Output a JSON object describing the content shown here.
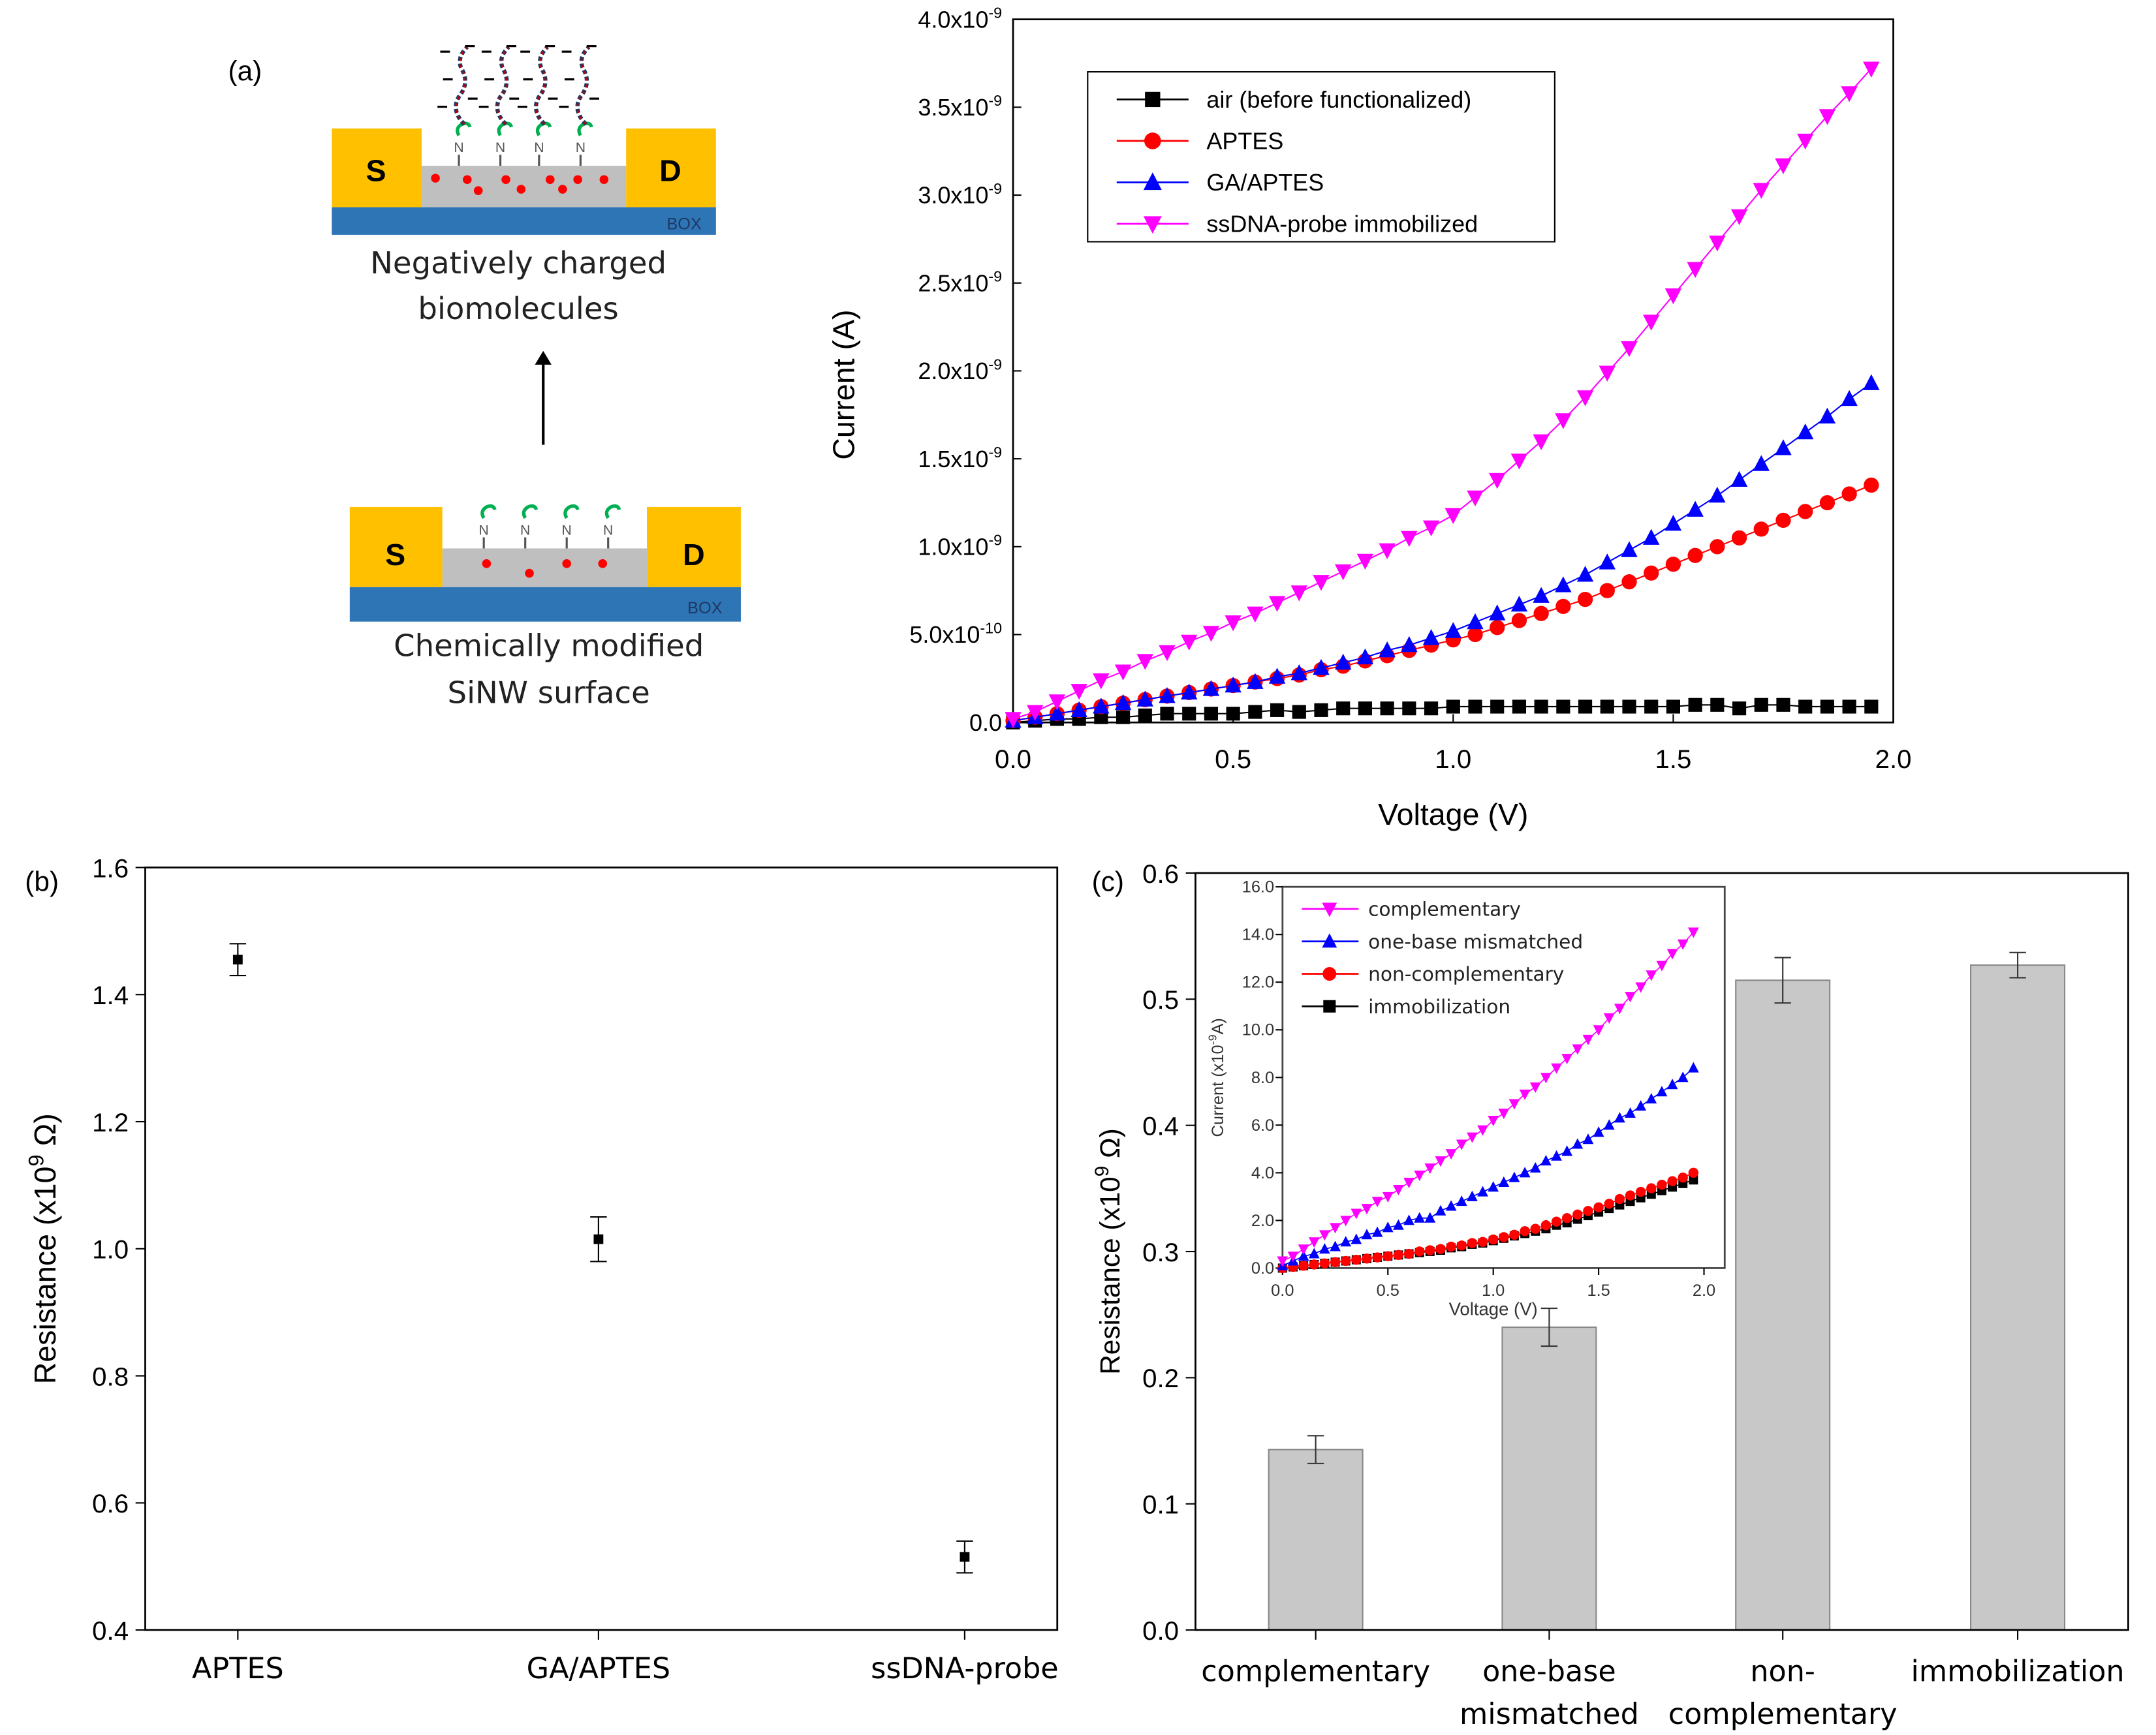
{
  "panel_a": {
    "label": "(a)",
    "source": "S",
    "drain": "D",
    "box": "BOX",
    "amine": "N",
    "charge": "−",
    "top_caption": [
      "Negatively charged",
      "biomolecules"
    ],
    "bottom_caption": [
      "Chemically modified",
      "SiNW surface"
    ],
    "colors": {
      "electrode": "#FFC000",
      "box": "#2E75B6",
      "channel": "#BFBFBF",
      "dot": "#FF0000",
      "linker": "#00B050"
    }
  },
  "panel_b_label": "(b)",
  "panel_c_label": "(c)",
  "chart_data": [
    {
      "id": "iv-main",
      "type": "line",
      "xlabel": "Voltage (V)",
      "ylabel": "Current (A)",
      "xlim": [
        0,
        2.0
      ],
      "ylim": [
        0,
        4e-09
      ],
      "y_unit_scale": 1e-09,
      "xticks": [
        "0.0",
        "0.5",
        "1.0",
        "1.5",
        "2.0"
      ],
      "xtick_values": [
        0,
        0.5,
        1.0,
        1.5,
        2.0
      ],
      "yticks": [
        {
          "v": 0,
          "m": "0.0",
          "e": ""
        },
        {
          "v": 0.5,
          "m": "5.0x10",
          "e": "-10"
        },
        {
          "v": 1.0,
          "m": "1.0x10",
          "e": "-9"
        },
        {
          "v": 1.5,
          "m": "1.5x10",
          "e": "-9"
        },
        {
          "v": 2.0,
          "m": "2.0x10",
          "e": "-9"
        },
        {
          "v": 2.5,
          "m": "2.5x10",
          "e": "-9"
        },
        {
          "v": 3.0,
          "m": "3.0x10",
          "e": "-9"
        },
        {
          "v": 3.5,
          "m": "3.5x10",
          "e": "-9"
        },
        {
          "v": 4.0,
          "m": "4.0x10",
          "e": "-9"
        }
      ],
      "legend": "top-left",
      "x": [
        0,
        0.05,
        0.1,
        0.15,
        0.2,
        0.25,
        0.3,
        0.35,
        0.4,
        0.45,
        0.5,
        0.55,
        0.6,
        0.65,
        0.7,
        0.75,
        0.8,
        0.85,
        0.9,
        0.95,
        1.0,
        1.05,
        1.1,
        1.15,
        1.2,
        1.25,
        1.3,
        1.35,
        1.4,
        1.45,
        1.5,
        1.55,
        1.6,
        1.65,
        1.7,
        1.75,
        1.8,
        1.85,
        1.9,
        1.95
      ],
      "series": [
        {
          "name": "air (before functionalized)",
          "color": "#000000",
          "marker": "square",
          "values": [
            0,
            0.01,
            0.02,
            0.02,
            0.03,
            0.03,
            0.04,
            0.05,
            0.05,
            0.05,
            0.05,
            0.06,
            0.07,
            0.06,
            0.07,
            0.08,
            0.08,
            0.08,
            0.08,
            0.08,
            0.09,
            0.09,
            0.09,
            0.09,
            0.09,
            0.09,
            0.09,
            0.09,
            0.09,
            0.09,
            0.09,
            0.1,
            0.1,
            0.08,
            0.1,
            0.1,
            0.09,
            0.09,
            0.09,
            0.09
          ]
        },
        {
          "name": "APTES",
          "color": "#FF0000",
          "marker": "circle",
          "values": [
            0.01,
            0.03,
            0.05,
            0.07,
            0.09,
            0.11,
            0.13,
            0.15,
            0.17,
            0.19,
            0.21,
            0.23,
            0.25,
            0.27,
            0.3,
            0.32,
            0.35,
            0.38,
            0.41,
            0.44,
            0.47,
            0.5,
            0.54,
            0.58,
            0.62,
            0.66,
            0.7,
            0.75,
            0.8,
            0.85,
            0.9,
            0.95,
            1.0,
            1.05,
            1.1,
            1.15,
            1.2,
            1.25,
            1.3,
            1.35
          ]
        },
        {
          "name": "GA/APTES",
          "color": "#0000FF",
          "marker": "triangle-up",
          "values": [
            0.01,
            0.03,
            0.05,
            0.07,
            0.09,
            0.11,
            0.13,
            0.15,
            0.17,
            0.19,
            0.21,
            0.23,
            0.26,
            0.28,
            0.31,
            0.34,
            0.37,
            0.41,
            0.44,
            0.48,
            0.52,
            0.57,
            0.62,
            0.67,
            0.72,
            0.78,
            0.84,
            0.91,
            0.98,
            1.05,
            1.13,
            1.21,
            1.29,
            1.38,
            1.47,
            1.56,
            1.65,
            1.74,
            1.84,
            1.93
          ]
        },
        {
          "name": "ssDNA-probe immobilized",
          "color": "#FF00FF",
          "marker": "triangle-down",
          "values": [
            0.02,
            0.06,
            0.12,
            0.18,
            0.24,
            0.29,
            0.35,
            0.4,
            0.46,
            0.51,
            0.57,
            0.62,
            0.68,
            0.74,
            0.8,
            0.86,
            0.92,
            0.98,
            1.05,
            1.11,
            1.18,
            1.28,
            1.38,
            1.49,
            1.6,
            1.72,
            1.85,
            1.99,
            2.13,
            2.28,
            2.43,
            2.58,
            2.73,
            2.88,
            3.03,
            3.17,
            3.31,
            3.45,
            3.58,
            3.72
          ]
        }
      ]
    },
    {
      "id": "resistance-scatter",
      "type": "scatter",
      "ylabel": {
        "pre": "Resistance (x10",
        "sup": "9",
        "post": " Ω)"
      },
      "ylim": [
        0.4,
        1.6
      ],
      "yticks": [
        "0.4",
        "0.6",
        "0.8",
        "1.0",
        "1.2",
        "1.4",
        "1.6"
      ],
      "ytick_values": [
        0.4,
        0.6,
        0.8,
        1.0,
        1.2,
        1.4,
        1.6
      ],
      "categories": [
        "APTES",
        "GA/APTES",
        "ssDNA-probe"
      ],
      "values": [
        1.455,
        1.015,
        0.515
      ],
      "errors": [
        0.025,
        0.035,
        0.025
      ],
      "color": "#000000"
    },
    {
      "id": "resistance-bars",
      "type": "bar",
      "ylabel": {
        "pre": "Resistance (x10",
        "sup": "9",
        "post": " Ω)"
      },
      "ylim": [
        0,
        0.6
      ],
      "yticks": [
        "0.0",
        "0.1",
        "0.2",
        "0.3",
        "0.4",
        "0.5",
        "0.6"
      ],
      "ytick_values": [
        0,
        0.1,
        0.2,
        0.3,
        0.4,
        0.5,
        0.6
      ],
      "categories": [
        [
          "complementary"
        ],
        [
          "one-base",
          "mismatched"
        ],
        [
          "non-",
          "complementary"
        ],
        [
          "immobilization"
        ]
      ],
      "values": [
        0.143,
        0.24,
        0.515,
        0.527
      ],
      "errors": [
        0.011,
        0.015,
        0.018,
        0.01
      ],
      "bar_color": "#C8C8C8"
    },
    {
      "id": "iv-inset",
      "type": "line",
      "xlabel": "Voltage (V)",
      "ylabel": {
        "pre": "Current (x10",
        "sup": "-9",
        "post": "A)"
      },
      "xlim": [
        0,
        2.0
      ],
      "ylim": [
        0,
        16
      ],
      "xticks": [
        "0.0",
        "0.5",
        "1.0",
        "1.5",
        "2.0"
      ],
      "xtick_values": [
        0,
        0.5,
        1.0,
        1.5,
        2.0
      ],
      "yticks": [
        "0.0",
        "2.0",
        "4.0",
        "6.0",
        "8.0",
        "10.0",
        "12.0",
        "14.0",
        "16.0"
      ],
      "ytick_values": [
        0,
        2,
        4,
        6,
        8,
        10,
        12,
        14,
        16
      ],
      "legend": "top-left",
      "x": [
        0,
        0.05,
        0.1,
        0.15,
        0.2,
        0.25,
        0.3,
        0.35,
        0.4,
        0.45,
        0.5,
        0.55,
        0.6,
        0.65,
        0.7,
        0.75,
        0.8,
        0.85,
        0.9,
        0.95,
        1.0,
        1.05,
        1.1,
        1.15,
        1.2,
        1.25,
        1.3,
        1.35,
        1.4,
        1.45,
        1.5,
        1.55,
        1.6,
        1.65,
        1.7,
        1.75,
        1.8,
        1.85,
        1.9,
        1.95
      ],
      "series": [
        {
          "name": "complementary",
          "color": "#FF00FF",
          "marker": "triangle-down",
          "values": [
            0.3,
            0.5,
            0.8,
            1.1,
            1.4,
            1.7,
            2.0,
            2.3,
            2.5,
            2.8,
            3.0,
            3.3,
            3.6,
            3.9,
            4.2,
            4.5,
            4.8,
            5.2,
            5.5,
            5.8,
            6.2,
            6.5,
            6.9,
            7.3,
            7.6,
            8.0,
            8.4,
            8.8,
            9.2,
            9.6,
            10.0,
            10.5,
            10.9,
            11.4,
            11.8,
            12.3,
            12.7,
            13.2,
            13.6,
            14.1
          ]
        },
        {
          "name": "one-base mismatched",
          "color": "#0000FF",
          "marker": "triangle-up",
          "values": [
            0.1,
            0.3,
            0.5,
            0.6,
            0.8,
            0.9,
            1.1,
            1.2,
            1.4,
            1.5,
            1.7,
            1.8,
            2.0,
            2.1,
            2.1,
            2.4,
            2.6,
            2.8,
            3.0,
            3.2,
            3.4,
            3.6,
            3.8,
            4.0,
            4.2,
            4.5,
            4.7,
            4.9,
            5.2,
            5.4,
            5.7,
            6.0,
            6.3,
            6.5,
            6.8,
            7.1,
            7.4,
            7.7,
            8.0,
            8.4
          ]
        },
        {
          "name": "non-complementary",
          "color": "#FF0000",
          "marker": "circle",
          "values": [
            0,
            0.05,
            0.1,
            0.15,
            0.2,
            0.25,
            0.3,
            0.35,
            0.4,
            0.45,
            0.5,
            0.55,
            0.6,
            0.7,
            0.75,
            0.8,
            0.9,
            0.95,
            1.05,
            1.1,
            1.2,
            1.3,
            1.4,
            1.55,
            1.65,
            1.8,
            1.95,
            2.1,
            2.25,
            2.4,
            2.55,
            2.7,
            2.9,
            3.05,
            3.2,
            3.35,
            3.5,
            3.65,
            3.8,
            4.0
          ]
        },
        {
          "name": "immobilization",
          "color": "#000000",
          "marker": "square",
          "values": [
            0,
            0.05,
            0.1,
            0.15,
            0.2,
            0.25,
            0.3,
            0.35,
            0.4,
            0.45,
            0.5,
            0.55,
            0.6,
            0.65,
            0.7,
            0.75,
            0.85,
            0.9,
            1.0,
            1.05,
            1.15,
            1.25,
            1.35,
            1.45,
            1.55,
            1.65,
            1.8,
            1.9,
            2.05,
            2.2,
            2.35,
            2.5,
            2.65,
            2.8,
            2.95,
            3.1,
            3.25,
            3.4,
            3.55,
            3.7
          ]
        }
      ]
    }
  ]
}
